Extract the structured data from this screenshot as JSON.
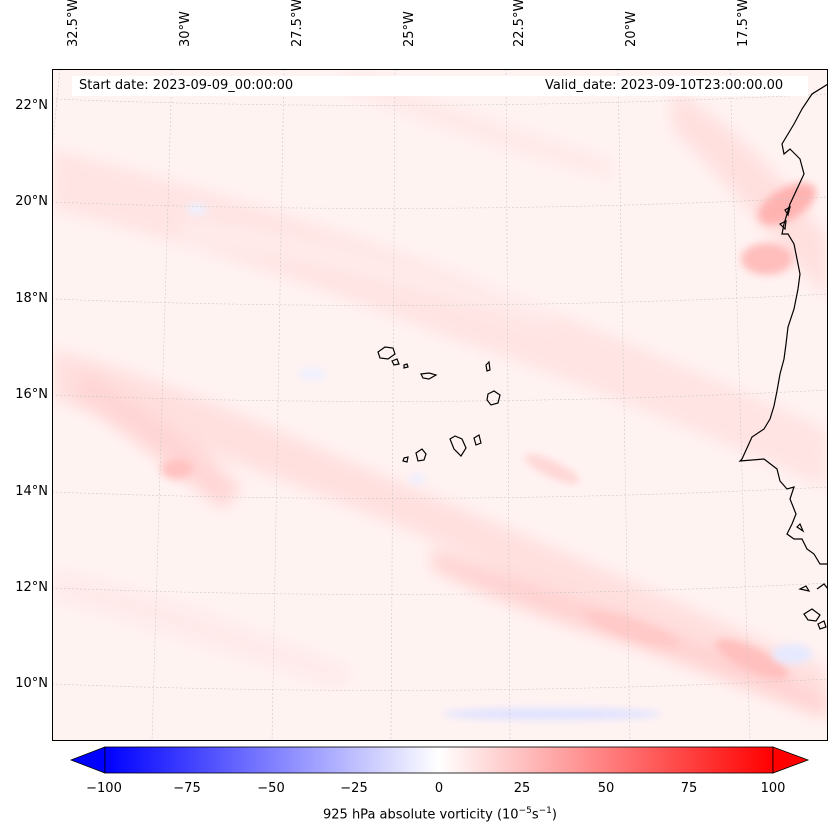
{
  "header": {
    "start_date": "Start date: 2023-09-09_00:00:00",
    "valid_date": "Valid_date: 2023-09-10T23:00:00.00"
  },
  "longitude_labels": [
    "32.5°W",
    "30°W",
    "27.5°W",
    "25°W",
    "22.5°W",
    "20°W",
    "17.5°W"
  ],
  "latitude_labels": [
    "22°N",
    "20°N",
    "18°N",
    "16°N",
    "14°N",
    "12°N",
    "10°N"
  ],
  "colorbar": {
    "ticks": [
      "−100",
      "−75",
      "−50",
      "−25",
      "0",
      "25",
      "50",
      "75",
      "100"
    ],
    "label_main": "925 hPa absolute vorticity (10",
    "label_exp1": "−5",
    "label_mid": "s",
    "label_exp2": "−1",
    "label_end": ")",
    "min_color": "#0000ff",
    "mid_color": "#ffffff",
    "max_color": "#ff0000"
  }
}
